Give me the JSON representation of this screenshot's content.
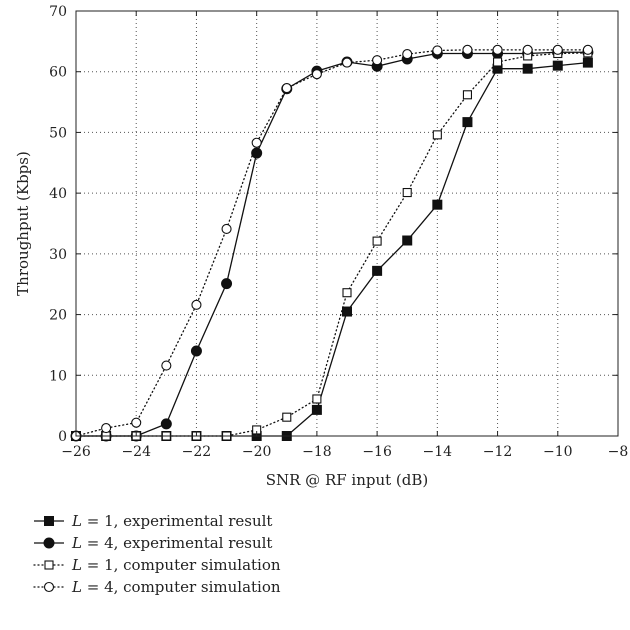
{
  "chart_data": {
    "type": "line",
    "xlabel": "SNR @ RF input (dB)",
    "ylabel": "Throughput (Kbps)",
    "xlim": [
      -26,
      -8
    ],
    "ylim": [
      0,
      70
    ],
    "xticks": [
      -26,
      -24,
      -22,
      -20,
      -18,
      -16,
      -14,
      -12,
      -10,
      -8
    ],
    "yticks": [
      0,
      10,
      20,
      30,
      40,
      50,
      60,
      70
    ],
    "xtick_labels": [
      "−26",
      "−24",
      "−22",
      "−20",
      "−18",
      "−16",
      "−14",
      "−12",
      "−10",
      "−8"
    ],
    "ytick_labels": [
      "0",
      "10",
      "20",
      "30",
      "40",
      "50",
      "60",
      "70"
    ],
    "grid": true,
    "legend_position": "below",
    "series": [
      {
        "var": "L",
        "eq": " = 1, experimental result",
        "marker": "square-filled",
        "line": "solid",
        "x": [
          -26,
          -25,
          -24,
          -23,
          -22,
          -21,
          -20,
          -19,
          -18,
          -17,
          -16,
          -15,
          -14,
          -13,
          -12,
          -11,
          -10,
          -9
        ],
        "y": [
          0,
          0,
          0,
          0,
          0,
          0,
          0,
          0,
          4.3,
          20.5,
          27.2,
          32.2,
          38.1,
          51.7,
          60.5,
          60.5,
          61.0,
          61.5
        ]
      },
      {
        "var": "L",
        "eq": " = 4, experimental result",
        "marker": "circle-filled",
        "line": "solid",
        "x": [
          -26,
          -25,
          -24,
          -23,
          -22,
          -21,
          -20,
          -19,
          -18,
          -17,
          -16,
          -15,
          -14,
          -13,
          -12,
          -11,
          -10,
          -9
        ],
        "y": [
          0,
          0,
          0,
          2.0,
          14.0,
          25.1,
          46.6,
          57.2,
          60.1,
          61.6,
          60.9,
          62.1,
          63.0,
          63.0,
          63.0,
          63.0,
          63.2,
          63.2
        ]
      },
      {
        "var": "L",
        "eq": " = 1, computer simulation",
        "marker": "square-open",
        "line": "dotted",
        "x": [
          -26,
          -25,
          -24,
          -23,
          -22,
          -21,
          -20,
          -19,
          -18,
          -17,
          -16,
          -15,
          -14,
          -13,
          -12,
          -11,
          -10,
          -9
        ],
        "y": [
          0,
          0,
          0,
          0,
          0,
          0,
          1.0,
          3.1,
          6.1,
          23.6,
          32.1,
          40.1,
          49.6,
          56.2,
          61.6,
          62.6,
          63.0,
          63.1
        ]
      },
      {
        "var": "L",
        "eq": " = 4, computer simulation",
        "marker": "circle-open",
        "line": "dotted",
        "x": [
          -26,
          -25,
          -24,
          -23,
          -22,
          -21,
          -20,
          -19,
          -18,
          -17,
          -16,
          -15,
          -14,
          -13,
          -12,
          -11,
          -10,
          -9
        ],
        "y": [
          0,
          1.3,
          2.2,
          11.6,
          21.6,
          34.1,
          48.3,
          57.3,
          59.6,
          61.5,
          61.9,
          62.9,
          63.5,
          63.6,
          63.6,
          63.6,
          63.6,
          63.6
        ]
      }
    ]
  }
}
